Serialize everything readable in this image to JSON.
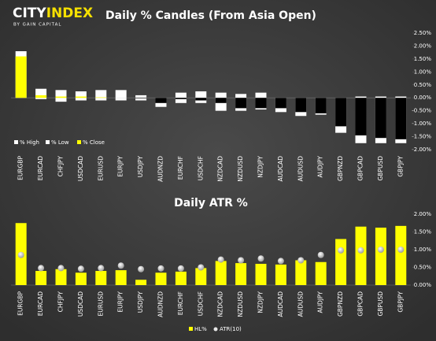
{
  "logo": {
    "part_1": "CITY",
    "part_2": "INDEX",
    "tagline": "BY GAIN CAPITAL"
  },
  "chart_data": [
    {
      "type": "candle",
      "title": "Daily % Candles (From Asia Open)",
      "categories": [
        "EURGBP",
        "EURCAD",
        "CHFJPY",
        "USDCAD",
        "EURUSD",
        "EURJPY",
        "USDJPY",
        "AUDNZD",
        "EURCHF",
        "USDCHF",
        "NZDCAD",
        "NZDUSD",
        "NZDJPY",
        "AUDCAD",
        "AUDUSD",
        "AUDJPY",
        "GBPNZD",
        "GBPCAD",
        "GBPUSD",
        "GBPJPY"
      ],
      "series": [
        {
          "name": "% High",
          "color": "#ffffff",
          "values": [
            1.8,
            0.35,
            0.3,
            0.25,
            0.3,
            0.3,
            0.1,
            0.0,
            0.2,
            0.25,
            0.2,
            0.15,
            0.2,
            0.0,
            0.0,
            0.0,
            0.0,
            0.05,
            0.05,
            0.05
          ]
        },
        {
          "name": "% Low",
          "color": "#ffffff",
          "values": [
            0.0,
            -0.05,
            -0.15,
            -0.1,
            -0.1,
            -0.1,
            -0.1,
            -0.35,
            -0.2,
            -0.2,
            -0.5,
            -0.5,
            -0.45,
            -0.55,
            -0.7,
            -0.65,
            -1.35,
            -1.75,
            -1.75,
            -1.75
          ]
        },
        {
          "name": "% Close",
          "color": "#ffff00",
          "negative_color": "#000000",
          "values": [
            1.6,
            0.1,
            0.05,
            0.05,
            0.02,
            0.0,
            -0.02,
            -0.2,
            -0.05,
            -0.1,
            -0.2,
            -0.4,
            -0.4,
            -0.4,
            -0.55,
            -0.6,
            -1.1,
            -1.45,
            -1.55,
            -1.6
          ]
        }
      ],
      "ylim": [
        -2.0,
        2.5
      ],
      "yticks": [
        {
          "value": 2.5,
          "label": "2.50%"
        },
        {
          "value": 2.0,
          "label": "2.00%"
        },
        {
          "value": 1.5,
          "label": "1.50%"
        },
        {
          "value": 1.0,
          "label": "1.00%"
        },
        {
          "value": 0.5,
          "label": "0.50%"
        },
        {
          "value": 0.0,
          "label": "0.00%"
        },
        {
          "value": -0.5,
          "label": "-0.50%"
        },
        {
          "value": -1.0,
          "label": "-1.00%"
        },
        {
          "value": -1.5,
          "label": "-1.50%"
        },
        {
          "value": -2.0,
          "label": "-2.00%"
        }
      ],
      "legend": "bottom-left"
    },
    {
      "type": "bar_dot",
      "title": "Daily ATR %",
      "categories": [
        "EURGBP",
        "EURCAD",
        "CHFJPY",
        "USDCAD",
        "EURUSD",
        "EURJPY",
        "USDJPY",
        "AUDNZD",
        "EURCHF",
        "USDCHF",
        "NZDCAD",
        "NZDUSD",
        "NZDJPY",
        "AUDCAD",
        "AUDUSD",
        "AUDJPY",
        "GBPNZD",
        "GBPCAD",
        "GBPUSD",
        "GBPJPY"
      ],
      "series": [
        {
          "name": "HL%",
          "color": "#ffff00",
          "values": [
            1.75,
            0.4,
            0.45,
            0.35,
            0.4,
            0.42,
            0.15,
            0.35,
            0.38,
            0.48,
            0.68,
            0.62,
            0.6,
            0.58,
            0.7,
            0.65,
            1.3,
            1.65,
            1.62,
            1.67
          ]
        },
        {
          "name": "ATR(10)",
          "color": "#e8e8e8",
          "values": [
            0.85,
            0.48,
            0.48,
            0.46,
            0.48,
            0.55,
            0.45,
            0.47,
            0.47,
            0.5,
            0.72,
            0.7,
            0.75,
            0.68,
            0.7,
            0.85,
            0.98,
            0.98,
            1.0,
            1.0
          ]
        }
      ],
      "ylim": [
        0,
        2.0
      ],
      "yticks": [
        {
          "value": 2.0,
          "label": "2.00%"
        },
        {
          "value": 1.5,
          "label": "1.50%"
        },
        {
          "value": 1.0,
          "label": "1.00%"
        },
        {
          "value": 0.5,
          "label": "0.50%"
        },
        {
          "value": 0.0,
          "label": "0.00%"
        }
      ],
      "legend": "bottom"
    }
  ]
}
